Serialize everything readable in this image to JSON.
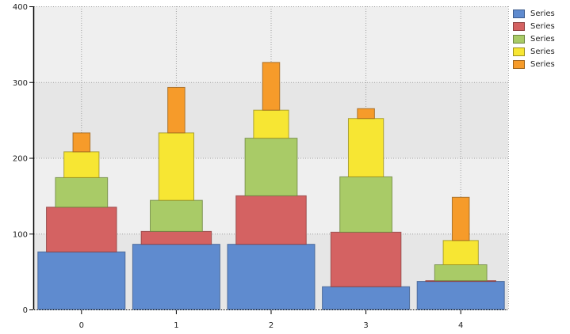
{
  "chart_data": {
    "type": "bar",
    "stacked": true,
    "title": "",
    "xlabel": "",
    "ylabel": "",
    "categories": [
      "0",
      "1",
      "2",
      "3",
      "4"
    ],
    "ylim": [
      0,
      400
    ],
    "yticks": [
      0,
      100,
      200,
      300,
      400
    ],
    "grid": true,
    "legend_position": "right",
    "series": [
      {
        "name": "Series",
        "color": "#5f8bcf",
        "border": "#3e5c8c",
        "width_frac": 0.92,
        "values": [
          76,
          86,
          86,
          30,
          37
        ]
      },
      {
        "name": "Series",
        "color": "#d46262",
        "border": "#8c3f3f",
        "width_frac": 0.74,
        "values": [
          59,
          17,
          64,
          72,
          1
        ]
      },
      {
        "name": "Series",
        "color": "#a9cb67",
        "border": "#6d8540",
        "width_frac": 0.55,
        "values": [
          39,
          41,
          76,
          73,
          21
        ]
      },
      {
        "name": "Series",
        "color": "#f7e633",
        "border": "#9a8f20",
        "width_frac": 0.37,
        "values": [
          34,
          89,
          37,
          77,
          32
        ]
      },
      {
        "name": "Series",
        "color": "#f69b2a",
        "border": "#9a611a",
        "width_frac": 0.18,
        "values": [
          25,
          60,
          63,
          13,
          57
        ]
      }
    ]
  },
  "legend": {
    "items": [
      {
        "label": "Series",
        "color": "#5f8bcf",
        "border": "#3e5c8c"
      },
      {
        "label": "Series",
        "color": "#d46262",
        "border": "#8c3f3f"
      },
      {
        "label": "Series",
        "color": "#a9cb67",
        "border": "#6d8540"
      },
      {
        "label": "Series",
        "color": "#f7e633",
        "border": "#9a8f20"
      },
      {
        "label": "Series",
        "color": "#f69b2a",
        "border": "#9a611a"
      }
    ]
  },
  "style": {
    "band_dark": "#e6e6e6",
    "band_light": "#efefef",
    "grid_color": "#a0a0a0"
  }
}
